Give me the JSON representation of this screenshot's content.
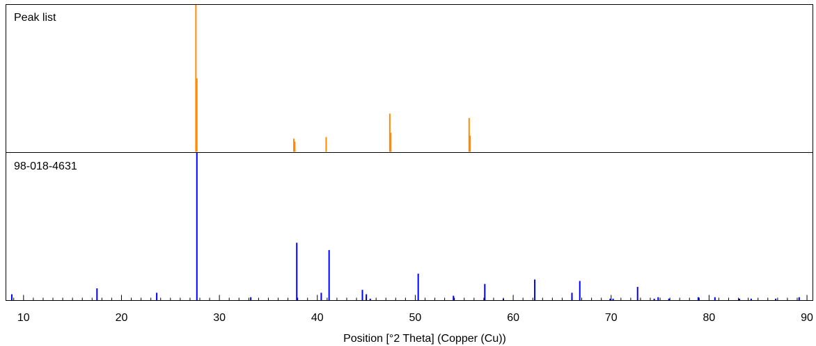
{
  "chart_data": [
    {
      "type": "bar",
      "panel_label": "Peak list",
      "color": "#ff8c00",
      "x": [
        27.6,
        27.7,
        37.6,
        37.7,
        40.9,
        47.4,
        47.5,
        55.5,
        55.6
      ],
      "values": [
        100,
        50,
        9,
        7,
        10,
        26,
        13,
        23,
        11
      ]
    },
    {
      "type": "bar",
      "panel_label": "98-018-4631",
      "color": "#0000ff",
      "x": [
        8.8,
        17.5,
        23.6,
        27.7,
        33.2,
        37.9,
        40.4,
        41.2,
        44.6,
        45.0,
        45.4,
        50.3,
        53.9,
        57.1,
        59.0,
        62.2,
        66.0,
        66.8,
        69.9,
        70.2,
        72.7,
        74.4,
        74.8,
        75.9,
        78.9,
        80.6,
        83.1,
        84.3,
        86.8,
        89.2
      ],
      "values": [
        4,
        8,
        5,
        100,
        2,
        39,
        5,
        34,
        7,
        4,
        1,
        18,
        3,
        11,
        1,
        14,
        5,
        13,
        1,
        1,
        9,
        1,
        2,
        1,
        2,
        2,
        1,
        1,
        1,
        2
      ]
    }
  ],
  "axis": {
    "xlabel": "Position [°2 Theta] (Copper (Cu))",
    "xlim": [
      8.2,
      90.6
    ],
    "tick_labels": [
      "10",
      "20",
      "30",
      "40",
      "50",
      "60",
      "70",
      "80",
      "90"
    ],
    "tick_values": [
      10,
      20,
      30,
      40,
      50,
      60,
      70,
      80,
      90
    ],
    "minor_tick_step": 1
  }
}
